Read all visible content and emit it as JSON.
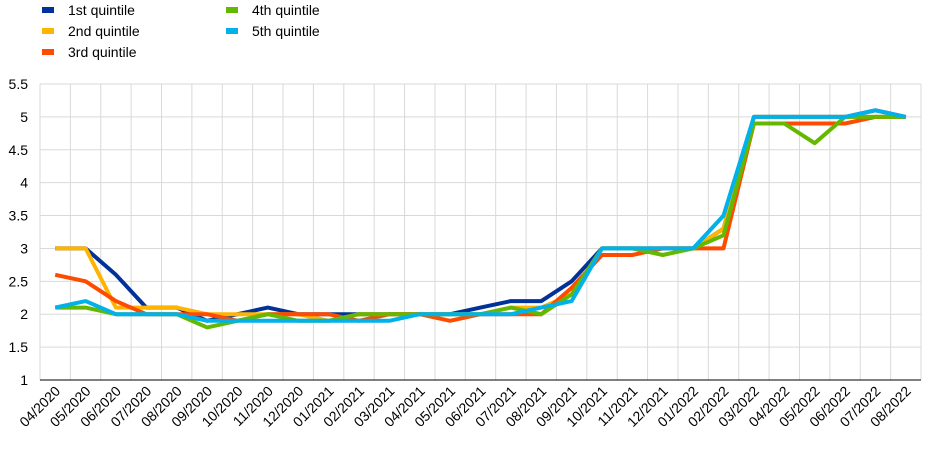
{
  "chart_data": {
    "type": "line",
    "title": "",
    "xlabel": "",
    "ylabel": "",
    "ylim": [
      1,
      5.5
    ],
    "y_ticks": [
      "1",
      "1.5",
      "2",
      "2.5",
      "3",
      "3.5",
      "4",
      "4.5",
      "5",
      "5.5"
    ],
    "grid": "vertical and horizontal",
    "legend_position": "top-left",
    "categories": [
      "04/2020",
      "05/2020",
      "06/2020",
      "07/2020",
      "08/2020",
      "09/2020",
      "10/2020",
      "11/2020",
      "12/2020",
      "01/2021",
      "02/2021",
      "03/2021",
      "04/2021",
      "05/2021",
      "06/2021",
      "07/2021",
      "08/2021",
      "09/2021",
      "10/2021",
      "11/2021",
      "12/2021",
      "01/2022",
      "02/2022",
      "03/2022",
      "04/2022",
      "05/2022",
      "06/2022",
      "07/2022",
      "08/2022"
    ],
    "series": [
      {
        "name": "1st quintile",
        "color": "#003299",
        "values": [
          3.0,
          3.0,
          2.6,
          2.1,
          2.1,
          1.9,
          2.0,
          2.1,
          2.0,
          2.0,
          2.0,
          2.0,
          2.0,
          2.0,
          2.1,
          2.2,
          2.2,
          2.5,
          3.0,
          3.0,
          3.0,
          3.0,
          3.3,
          5.0,
          5.0,
          5.0,
          5.0,
          5.1,
          5.0
        ]
      },
      {
        "name": "2nd quintile",
        "color": "#ffb400",
        "values": [
          3.0,
          3.0,
          2.1,
          2.1,
          2.1,
          2.0,
          2.0,
          2.0,
          2.0,
          1.9,
          2.0,
          2.0,
          2.0,
          2.0,
          2.0,
          2.1,
          2.1,
          2.3,
          3.0,
          3.0,
          3.0,
          3.0,
          3.3,
          5.0,
          5.0,
          5.0,
          5.0,
          5.0,
          5.0
        ]
      },
      {
        "name": "3rd quintile",
        "color": "#ff4b00",
        "values": [
          2.6,
          2.5,
          2.2,
          2.0,
          2.0,
          2.0,
          1.9,
          2.0,
          2.0,
          2.0,
          1.9,
          2.0,
          2.0,
          1.9,
          2.0,
          2.0,
          2.0,
          2.4,
          2.9,
          2.9,
          3.0,
          3.0,
          3.0,
          4.9,
          4.9,
          4.9,
          4.9,
          5.0,
          5.0
        ]
      },
      {
        "name": "4th quintile",
        "color": "#65b800",
        "values": [
          2.1,
          2.1,
          2.0,
          2.0,
          2.0,
          1.8,
          1.9,
          2.0,
          1.9,
          1.9,
          2.0,
          2.0,
          2.0,
          2.0,
          2.0,
          2.1,
          2.0,
          2.3,
          3.0,
          3.0,
          2.9,
          3.0,
          3.2,
          4.9,
          4.9,
          4.6,
          5.0,
          5.0,
          5.0
        ]
      },
      {
        "name": "5th quintile",
        "color": "#00b1ea",
        "values": [
          2.1,
          2.2,
          2.0,
          2.0,
          2.0,
          1.9,
          1.9,
          1.9,
          1.9,
          1.9,
          1.9,
          1.9,
          2.0,
          2.0,
          2.0,
          2.0,
          2.1,
          2.2,
          3.0,
          3.0,
          3.0,
          3.0,
          3.5,
          5.0,
          5.0,
          5.0,
          5.0,
          5.1,
          5.0
        ]
      }
    ]
  }
}
